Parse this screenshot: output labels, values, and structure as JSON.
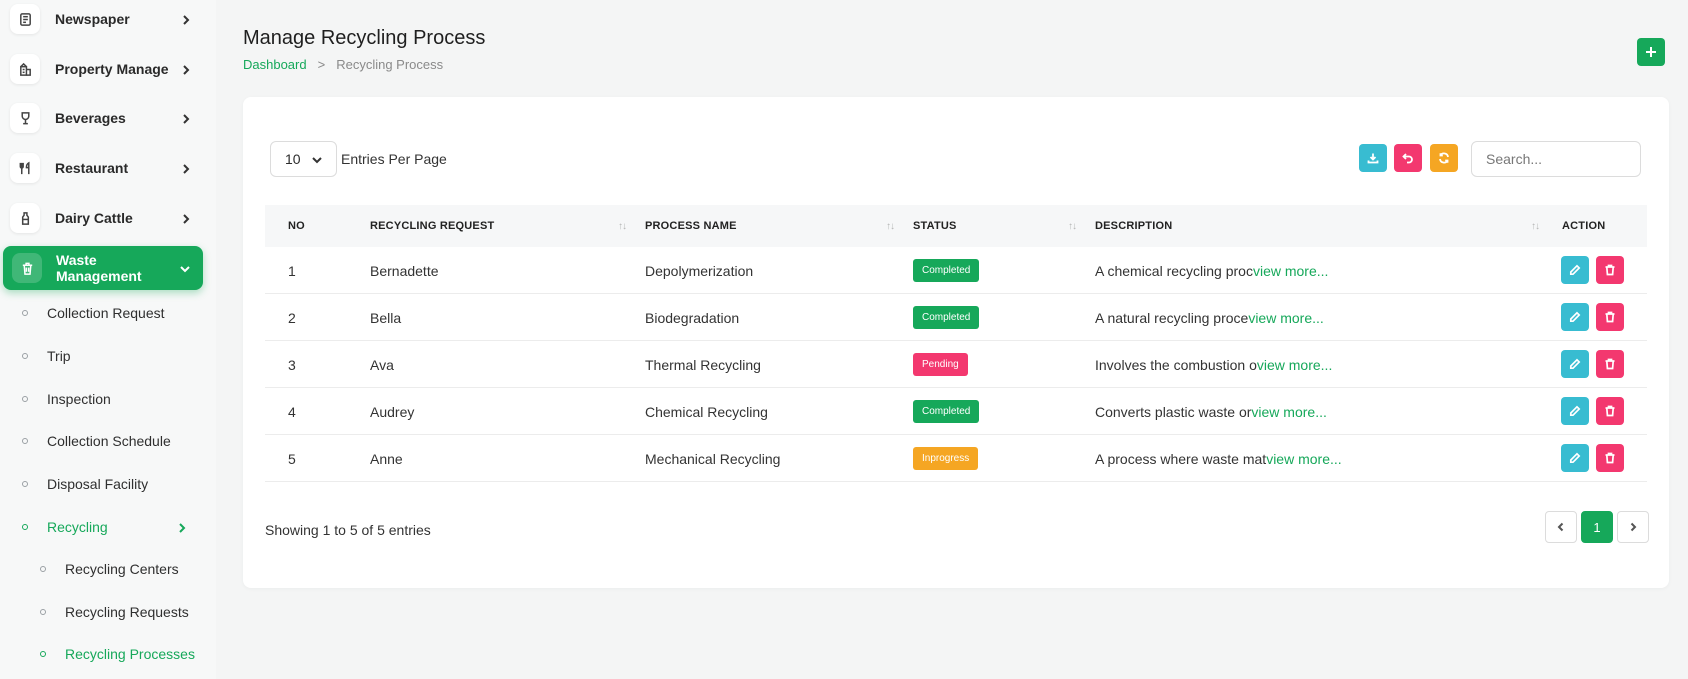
{
  "colors": {
    "primary": "#16a85a",
    "info": "#38bcd1",
    "danger": "#f3386f",
    "warning": "#f5a623"
  },
  "sidebar": {
    "items": [
      {
        "label": "Newspaper",
        "icon": "newspaper-icon"
      },
      {
        "label": "Property Manage",
        "icon": "building-icon"
      },
      {
        "label": "Beverages",
        "icon": "wine-glass-icon"
      },
      {
        "label": "Restaurant",
        "icon": "utensils-icon"
      },
      {
        "label": "Dairy Cattle",
        "icon": "milk-bottle-icon"
      },
      {
        "label": "Waste Management",
        "icon": "trash-icon"
      }
    ],
    "subitems": [
      "Collection Request",
      "Trip",
      "Inspection",
      "Collection Schedule",
      "Disposal Facility",
      "Recycling"
    ],
    "recycling_subitems": [
      "Recycling Centers",
      "Recycling Requests",
      "Recycling Processes"
    ]
  },
  "header": {
    "title": "Manage Recycling Process",
    "breadcrumb": {
      "home": "Dashboard",
      "separator": ">",
      "current": "Recycling Process"
    }
  },
  "toolbar": {
    "entries_value": "10",
    "entries_label": "Entries Per Page",
    "search_placeholder": "Search...",
    "buttons": [
      "download-icon",
      "undo-icon",
      "refresh-icon"
    ]
  },
  "table": {
    "columns": [
      "NO",
      "RECYCLING REQUEST",
      "PROCESS NAME",
      "STATUS",
      "DESCRIPTION",
      "ACTION"
    ],
    "sort_glyph": "↑↓",
    "view_more": "view more...",
    "rows": [
      {
        "no": "1",
        "request": "Bernadette",
        "process": "Depolymerization",
        "status": "Completed",
        "status_color": "#16a85a",
        "description": "A chemical recycling proc"
      },
      {
        "no": "2",
        "request": "Bella",
        "process": "Biodegradation",
        "status": "Completed",
        "status_color": "#16a85a",
        "description": "A natural recycling proce"
      },
      {
        "no": "3",
        "request": "Ava",
        "process": "Thermal Recycling",
        "status": "Pending",
        "status_color": "#f3386f",
        "description": "Involves the combustion o"
      },
      {
        "no": "4",
        "request": "Audrey",
        "process": "Chemical Recycling",
        "status": "Completed",
        "status_color": "#16a85a",
        "description": "Converts plastic waste or"
      },
      {
        "no": "5",
        "request": "Anne",
        "process": "Mechanical Recycling",
        "status": "Inprogress",
        "status_color": "#f5a623",
        "description": "A process where waste mat"
      }
    ]
  },
  "footer": {
    "showing": "Showing 1 to 5 of 5 entries",
    "current_page": "1"
  }
}
